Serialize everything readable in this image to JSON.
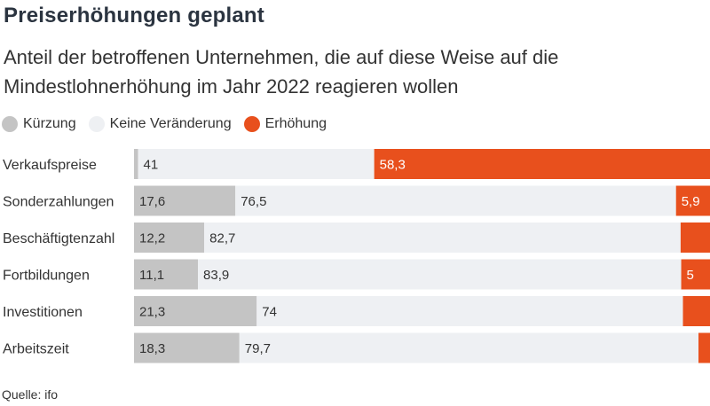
{
  "header": {
    "title": "Preiserhöhungen geplant",
    "subtitle": "Anteil der betroffenen Unternehmen, die auf diese Weise auf die Mindestlohnerhöhung im Jahr 2022 reagieren wollen"
  },
  "footer": {
    "source": "Quelle: ifo"
  },
  "colors": {
    "kuerzung": "#c4c4c4",
    "keine": "#eef0f3",
    "erhoehung": "#e8501d",
    "text": "#333333",
    "text_on_orange": "#ffffff"
  },
  "chart_data": {
    "type": "bar",
    "orientation": "horizontal",
    "stacked": true,
    "xlim": [
      0,
      100
    ],
    "grid": false,
    "legend_position": "top-left",
    "categories": [
      "Verkaufspreise",
      "Sonderzahlungen",
      "Beschäftigtenzahl",
      "Fortbildungen",
      "Investitionen",
      "Arbeitszeit"
    ],
    "series": [
      {
        "name": "Kürzung",
        "values": [
          0.7,
          17.6,
          12.2,
          11.1,
          21.3,
          18.3
        ],
        "labels": [
          "",
          "17,6",
          "12,2",
          "11,1",
          "21,3",
          "18,3"
        ]
      },
      {
        "name": "Keine Veränderung",
        "values": [
          41,
          76.5,
          82.7,
          83.9,
          74,
          79.7
        ],
        "labels": [
          "41",
          "76,5",
          "82,7",
          "83,9",
          "74",
          "79,7"
        ]
      },
      {
        "name": "Erhöhung",
        "values": [
          58.3,
          5.9,
          5.1,
          5,
          4.7,
          2
        ],
        "labels": [
          "58,3",
          "5,9",
          "",
          "5",
          "",
          ""
        ]
      }
    ]
  }
}
